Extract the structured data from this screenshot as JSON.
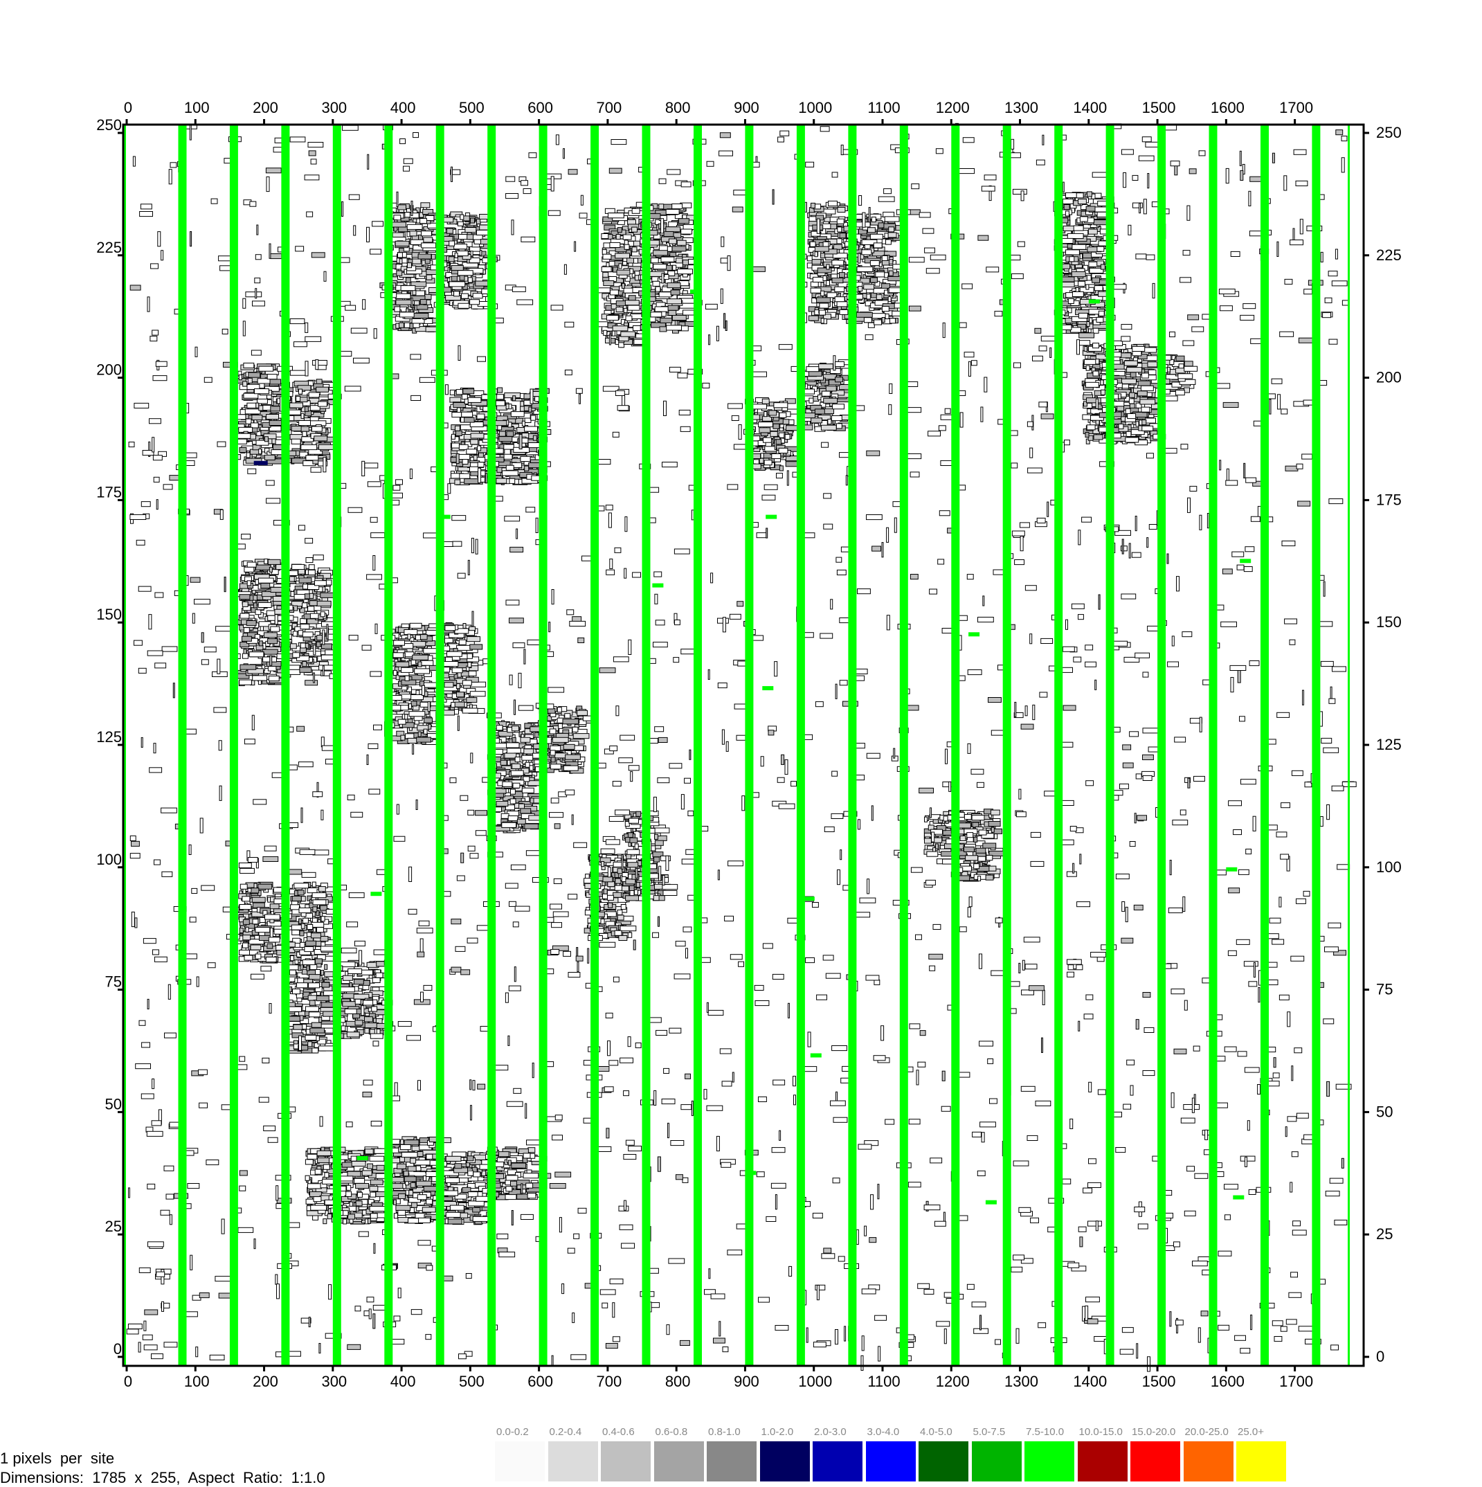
{
  "footer": {
    "scale_text": "1 pixels  per  site",
    "dimensions_text": "Dimensions:  1785  x  255,  Aspect  Ratio:  1:1.0"
  },
  "legend": [
    {
      "label": "0.0-0.2",
      "color": "#fafafa"
    },
    {
      "label": "0.2-0.4",
      "color": "#dcdcdc"
    },
    {
      "label": "0.4-0.6",
      "color": "#c0c0c0"
    },
    {
      "label": "0.6-0.8",
      "color": "#a4a4a4"
    },
    {
      "label": "0.8-1.0",
      "color": "#888888"
    },
    {
      "label": "1.0-2.0",
      "color": "#000060"
    },
    {
      "label": "2.0-3.0",
      "color": "#0000b0"
    },
    {
      "label": "3.0-4.0",
      "color": "#0000ff"
    },
    {
      "label": "4.0-5.0",
      "color": "#006400"
    },
    {
      "label": "5.0-7.5",
      "color": "#00b400"
    },
    {
      "label": "7.5-10.0",
      "color": "#00ff00"
    },
    {
      "label": "10.0-15.0",
      "color": "#aa0000"
    },
    {
      "label": "15.0-20.0",
      "color": "#ff0000"
    },
    {
      "label": "20.0-25.0",
      "color": "#ff6400"
    },
    {
      "label": "25.0+",
      "color": "#ffff00"
    }
  ],
  "chart_data": {
    "type": "heatmap",
    "xlim": [
      0,
      1785
    ],
    "ylim": [
      0,
      255
    ],
    "x_ticks": [
      0,
      100,
      200,
      300,
      400,
      500,
      600,
      700,
      800,
      900,
      1000,
      1100,
      1200,
      1300,
      1400,
      1500,
      1600,
      1700
    ],
    "y_ticks": [
      0,
      25,
      50,
      75,
      100,
      125,
      150,
      175,
      200,
      225,
      250
    ],
    "full_columns": [
      {
        "x": 75,
        "value_color": "#00ff00"
      },
      {
        "x": 150,
        "value_color": "#00ff00"
      },
      {
        "x": 225,
        "value_color": "#00ff00"
      },
      {
        "x": 300,
        "value_color": "#00ff00"
      },
      {
        "x": 375,
        "value_color": "#00ff00"
      },
      {
        "x": 450,
        "value_color": "#00ff00"
      },
      {
        "x": 525,
        "value_color": "#00ff00"
      },
      {
        "x": 600,
        "value_color": "#00ff00"
      },
      {
        "x": 675,
        "value_color": "#00ff00"
      },
      {
        "x": 750,
        "value_color": "#00ff00"
      },
      {
        "x": 825,
        "value_color": "#00ff00"
      },
      {
        "x": 900,
        "value_color": "#00ff00"
      },
      {
        "x": 975,
        "value_color": "#00ff00"
      },
      {
        "x": 1050,
        "value_color": "#00ff00"
      },
      {
        "x": 1125,
        "value_color": "#00ff00"
      },
      {
        "x": 1200,
        "value_color": "#00ff00"
      },
      {
        "x": 1275,
        "value_color": "#00ff00"
      },
      {
        "x": 1350,
        "value_color": "#00ff00"
      },
      {
        "x": 1425,
        "value_color": "#00ff00"
      },
      {
        "x": 1500,
        "value_color": "#00ff00"
      },
      {
        "x": 1575,
        "value_color": "#00ff00"
      },
      {
        "x": 1650,
        "value_color": "#00ff00"
      },
      {
        "x": 1725,
        "value_color": "#00ff00"
      }
    ],
    "clusters": [
      {
        "x": [
          160,
          220
        ],
        "y": [
          183,
          203
        ]
      },
      {
        "x": [
          230,
          285
        ],
        "y": [
          183,
          200
        ]
      },
      {
        "x": [
          160,
          220
        ],
        "y": [
          138,
          163
        ]
      },
      {
        "x": [
          230,
          285
        ],
        "y": [
          140,
          162
        ]
      },
      {
        "x": [
          160,
          220
        ],
        "y": [
          81,
          97
        ]
      },
      {
        "x": [
          230,
          285
        ],
        "y": [
          81,
          97
        ]
      },
      {
        "x": [
          230,
          290
        ],
        "y": [
          63,
          82
        ]
      },
      {
        "x": [
          300,
          365
        ],
        "y": [
          66,
          81
        ]
      },
      {
        "x": [
          260,
          365
        ],
        "y": [
          28,
          43
        ]
      },
      {
        "x": [
          380,
          450
        ],
        "y": [
          28,
          45
        ]
      },
      {
        "x": [
          455,
          525
        ],
        "y": [
          28,
          42
        ]
      },
      {
        "x": [
          525,
          590
        ],
        "y": [
          33,
          43
        ]
      },
      {
        "x": [
          380,
          440
        ],
        "y": [
          210,
          236
        ]
      },
      {
        "x": [
          455,
          520
        ],
        "y": [
          215,
          234
        ]
      },
      {
        "x": [
          380,
          440
        ],
        "y": [
          126,
          150
        ]
      },
      {
        "x": [
          455,
          500
        ],
        "y": [
          132,
          150
        ]
      },
      {
        "x": [
          470,
          600
        ],
        "y": [
          179,
          198
        ]
      },
      {
        "x": [
          525,
          590
        ],
        "y": [
          108,
          130
        ]
      },
      {
        "x": [
          590,
          660
        ],
        "y": [
          120,
          133
        ]
      },
      {
        "x": [
          665,
          720
        ],
        "y": [
          86,
          103
        ]
      },
      {
        "x": [
          720,
          770
        ],
        "y": [
          94,
          112
        ]
      },
      {
        "x": [
          690,
          740
        ],
        "y": [
          207,
          235
        ]
      },
      {
        "x": [
          745,
          810
        ],
        "y": [
          210,
          236
        ]
      },
      {
        "x": [
          900,
          960
        ],
        "y": [
          182,
          196
        ]
      },
      {
        "x": [
          980,
          1040
        ],
        "y": [
          190,
          203
        ]
      },
      {
        "x": [
          990,
          1050
        ],
        "y": [
          212,
          236
        ]
      },
      {
        "x": [
          1055,
          1110
        ],
        "y": [
          212,
          234
        ]
      },
      {
        "x": [
          1160,
          1200
        ],
        "y": [
          103,
          112
        ]
      },
      {
        "x": [
          1200,
          1260
        ],
        "y": [
          98,
          112
        ]
      },
      {
        "x": [
          1350,
          1420
        ],
        "y": [
          210,
          238
        ]
      },
      {
        "x": [
          1390,
          1490
        ],
        "y": [
          187,
          207
        ]
      },
      {
        "x": [
          1500,
          1540
        ],
        "y": [
          197,
          205
        ]
      }
    ],
    "green_marks": [
      {
        "x": 820,
        "y": 218
      },
      {
        "x": 1400,
        "y": 216
      },
      {
        "x": 455,
        "y": 172
      },
      {
        "x": 930,
        "y": 172
      },
      {
        "x": 765,
        "y": 158
      },
      {
        "x": 1620,
        "y": 163
      },
      {
        "x": 1225,
        "y": 148
      },
      {
        "x": 925,
        "y": 137
      },
      {
        "x": 355,
        "y": 95
      },
      {
        "x": 985,
        "y": 94
      },
      {
        "x": 1600,
        "y": 100
      },
      {
        "x": 995,
        "y": 62
      },
      {
        "x": 335,
        "y": 41
      },
      {
        "x": 900,
        "y": 38
      },
      {
        "x": 1250,
        "y": 32
      },
      {
        "x": 1610,
        "y": 33
      }
    ],
    "dark_marks": [
      {
        "x": 185,
        "y": 183
      }
    ]
  }
}
